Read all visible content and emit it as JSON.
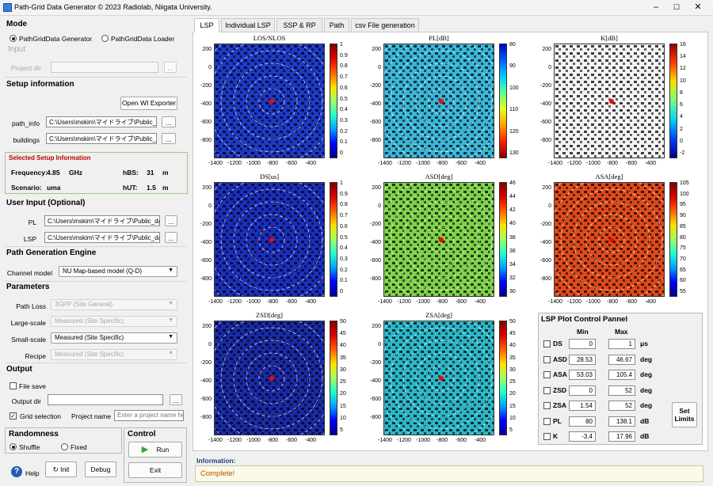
{
  "window": {
    "title": "Path-Grid Data Generator © 2023 Radiolab, Niigata University.",
    "min": "–",
    "max": "☐",
    "close": "✕"
  },
  "mode": {
    "title": "Mode",
    "opt1": "PathGridData Generator",
    "opt2": "PathGridData Loader"
  },
  "input": {
    "title": "Input",
    "project_dir_label": "Project dir",
    "browse": "..."
  },
  "setup": {
    "title": "Setup information",
    "open_wi": "Open WI Exporter",
    "path_info_label": "path_info",
    "path_info_value": "C:\\Users\\mskim\\マイドライブ\\Public_c",
    "buildings_label": "buildings",
    "buildings_value": "C:\\Users\\mskim\\マイドライブ\\Public_c",
    "browse": "..."
  },
  "selected": {
    "title": "Selected Setup Information",
    "freq_label": "Frequency:",
    "freq_value": "4.85",
    "freq_unit": "GHz",
    "hbs_label": "hBS:",
    "hbs_value": "31",
    "hbs_unit": "m",
    "scen_label": "Scenario:",
    "scen_value": "uma",
    "hut_label": "hUT:",
    "hut_value": "1.5",
    "hut_unit": "m"
  },
  "user_input": {
    "title": "User Input  (Optional)",
    "pl_label": "PL",
    "pl_value": "C:\\Users\\mskim\\マイドライブ\\Public_da",
    "lsp_label": "LSP",
    "lsp_value": "C:\\Users\\mskim\\マイドライブ\\Public_da",
    "browse": "..."
  },
  "engine": {
    "title": "Path Generation Engine",
    "channel_label": "Channel model",
    "channel_value": "NU Map-based model (Q-D)"
  },
  "params": {
    "title": "Parameters",
    "pathloss_label": "Path Loss",
    "pathloss_value": "3GPP (Site General)",
    "large_label": "Large-scale",
    "large_value": "Measured (Site Specific)",
    "small_label": "Small-scale",
    "small_value": "Measured (Site Specific)",
    "recipe_label": "Recipe",
    "recipe_value": "Measured (Site Specific)"
  },
  "output": {
    "title": "Output",
    "file_save": "File save",
    "output_dir_label": "Output dir",
    "browse": "...",
    "grid_selection": "Grid selection",
    "project_name_label": "Project name",
    "project_name_placeholder": "Enter a project name he"
  },
  "random": {
    "title": "Randomness",
    "shuffle": "Shuffle",
    "fixed": "Fixed"
  },
  "control": {
    "title": "Control",
    "run": "Run",
    "exit": "Exit"
  },
  "bottom": {
    "help": "Help",
    "init": "Init",
    "debug": "Debug"
  },
  "tabs": [
    "LSP",
    "Individual LSP",
    "SSP & RP",
    "Path",
    "csv File generation"
  ],
  "plots": [
    {
      "title": "LOS/NLOS",
      "cbar": [
        "1",
        "0.9",
        "0.8",
        "0.7",
        "0.6",
        "0.5",
        "0.4",
        "0.3",
        "0.2",
        "0.1",
        "0"
      ]
    },
    {
      "title": "PL[dB]",
      "cbar": [
        "80",
        "90",
        "100",
        "110",
        "120",
        "130"
      ]
    },
    {
      "title": "K[dB]",
      "cbar": [
        "16",
        "14",
        "12",
        "10",
        "8",
        "6",
        "4",
        "2",
        "0",
        "-2"
      ]
    },
    {
      "title": "DS[us]",
      "cbar": [
        "1",
        "0.9",
        "0.8",
        "0.7",
        "0.6",
        "0.5",
        "0.4",
        "0.3",
        "0.2",
        "0.1",
        "0"
      ]
    },
    {
      "title": "ASD[deg]",
      "cbar": [
        "46",
        "44",
        "42",
        "40",
        "38",
        "36",
        "34",
        "32",
        "30"
      ]
    },
    {
      "title": "ASA[deg]",
      "cbar": [
        "105",
        "100",
        "95",
        "90",
        "85",
        "80",
        "75",
        "70",
        "65",
        "60",
        "55"
      ]
    },
    {
      "title": "ZSD[deg]",
      "cbar": [
        "50",
        "45",
        "40",
        "35",
        "30",
        "25",
        "20",
        "15",
        "10",
        "5"
      ]
    },
    {
      "title": "ZSA[deg]",
      "cbar": [
        "50",
        "45",
        "40",
        "35",
        "30",
        "25",
        "20",
        "15",
        "10",
        "5"
      ]
    }
  ],
  "axes": {
    "y_ticks": [
      "200",
      "0",
      "-200",
      "-400",
      "-600",
      "-800"
    ],
    "x_ticks": [
      "-1400",
      "-1200",
      "-1000",
      "-800",
      "-600",
      "-400"
    ]
  },
  "lsp_control": {
    "title": "LSP Plot Control Pannel",
    "min_header": "Min",
    "max_header": "Max",
    "set_limits": "Set Limits",
    "rows": [
      {
        "name": "DS",
        "min": "0",
        "max": "1",
        "unit": "μs"
      },
      {
        "name": "ASD",
        "min": "28.53",
        "max": "46.67",
        "unit": "deg"
      },
      {
        "name": "ASA",
        "min": "53.03",
        "max": "105.4",
        "unit": "deg"
      },
      {
        "name": "ZSD",
        "min": "0",
        "max": "52",
        "unit": "deg"
      },
      {
        "name": "ZSA",
        "min": "1.54",
        "max": "52",
        "unit": "deg"
      },
      {
        "name": "PL",
        "min": "80",
        "max": "138.1",
        "unit": "dB"
      },
      {
        "name": "K",
        "min": "-3.4",
        "max": "17.96",
        "unit": "dB"
      }
    ]
  },
  "info": {
    "label": "Information:",
    "message": "Complete!"
  },
  "colors": {
    "accent": "#1e5fb3",
    "jet_low": "#00008f",
    "jet_high": "#800000",
    "info_bg": "#fafae6",
    "info_text": "#c05000"
  }
}
